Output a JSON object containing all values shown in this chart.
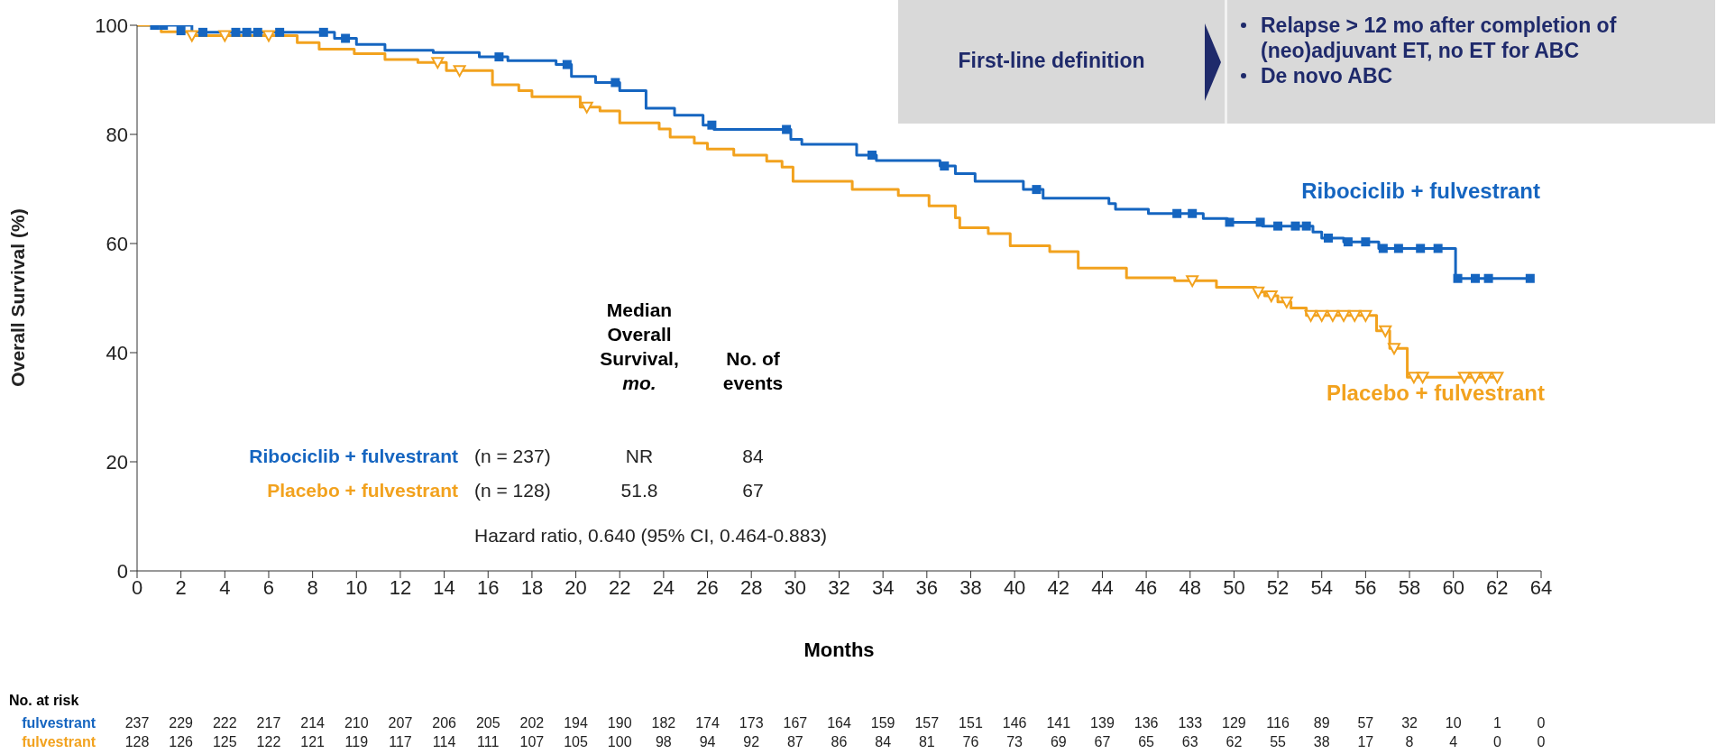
{
  "chart_data": {
    "type": "step",
    "xlabel": "Months",
    "ylabel": "Overall Survival (%)",
    "xlim": [
      0,
      64
    ],
    "ylim": [
      0,
      100
    ],
    "xticks": [
      0,
      2,
      4,
      6,
      8,
      10,
      12,
      14,
      16,
      18,
      20,
      22,
      24,
      26,
      28,
      30,
      32,
      34,
      36,
      38,
      40,
      42,
      44,
      46,
      48,
      50,
      52,
      54,
      56,
      58,
      60,
      62,
      64
    ],
    "yticks": [
      0,
      20,
      40,
      60,
      80,
      100
    ],
    "series": [
      {
        "name": "Ribociclib + fulvestrant",
        "color": "#1565c0",
        "marker": "none",
        "x": [
          0,
          2.5,
          9,
          10,
          11.3,
          13.5,
          15.6,
          16.9,
          19.1,
          19.8,
          20.9,
          22,
          23.2,
          24.5,
          25.8,
          26.3,
          29.8,
          30.3,
          32.8,
          33.7,
          36.6,
          37.3,
          38.2,
          40.4,
          41.3,
          44.3,
          44.6,
          46.1,
          48.6,
          49.7,
          51.3,
          53.6,
          54,
          55,
          56.6,
          60.1,
          63.5
        ],
        "values": [
          100,
          98.7,
          97.6,
          96.5,
          95.4,
          95,
          94.2,
          93.5,
          92.8,
          90.6,
          89.5,
          88,
          84.8,
          83.5,
          81.7,
          80.9,
          79.1,
          78.2,
          76.2,
          75.2,
          74.2,
          72.8,
          71.4,
          69.9,
          68.3,
          67.3,
          66.3,
          65.5,
          64.6,
          63.9,
          63.2,
          62.1,
          61,
          60.3,
          59.1,
          53.6,
          53.6
        ]
      },
      {
        "name": "Placebo + fulvestrant",
        "color": "#f2a21e",
        "marker": "none",
        "x": [
          0,
          1.1,
          2.5,
          7.3,
          8.3,
          9.9,
          11.3,
          12.8,
          14.1,
          16.2,
          17.4,
          18,
          20.2,
          21.1,
          22,
          23.8,
          24.3,
          25.4,
          26,
          27.2,
          28.7,
          29.4,
          29.9,
          32.6,
          34.7,
          36.1,
          37.3,
          37.5,
          38.8,
          39.8,
          41.6,
          42.9,
          45.1,
          47.3,
          49.2,
          51,
          51.4,
          52,
          52.6,
          53.3,
          56.5,
          57.1,
          57.9,
          62.1
        ],
        "values": [
          100,
          98.8,
          98.1,
          96.8,
          95.6,
          94.8,
          93.7,
          93.2,
          91.7,
          89.1,
          88,
          86.9,
          85,
          84.3,
          82.1,
          81,
          79.5,
          78.4,
          77.3,
          76.2,
          75.1,
          74,
          71.4,
          69.9,
          68.8,
          66.9,
          64.7,
          62.9,
          61.8,
          59.6,
          58.5,
          55.5,
          53.7,
          53.2,
          52,
          51.1,
          50.4,
          49.3,
          48.2,
          46.8,
          44,
          40.8,
          35.5,
          35.5
        ]
      },
      {
        "type": "scatter",
        "color": "#1565c0",
        "marker": "square",
        "x": [
          0.8,
          1.2,
          2,
          3,
          4.5,
          5,
          5.5,
          6.5,
          8.5,
          9.5,
          16.5,
          19.6,
          21.8,
          26.2,
          29.6,
          33.5,
          36.8,
          41,
          47.4,
          48.1,
          49.8,
          51.2,
          52,
          52.8,
          53.3,
          54.3,
          55.2,
          56,
          56.8,
          57.5,
          58.5,
          59.3,
          60.2,
          61,
          61.6,
          63.5
        ],
        "values": [
          100,
          100,
          99,
          98.7,
          98.7,
          98.7,
          98.7,
          98.7,
          98.7,
          97.6,
          94.2,
          92.8,
          89.5,
          81.7,
          80.9,
          76.2,
          74.2,
          69.9,
          65.5,
          65.5,
          63.9,
          63.9,
          63.2,
          63.2,
          63.2,
          61,
          60.3,
          60.3,
          59.1,
          59.1,
          59.1,
          59.1,
          53.6,
          53.6,
          53.6,
          53.6
        ]
      },
      {
        "type": "scatter",
        "color": "#f2a21e",
        "marker": "triangle",
        "x": [
          2.5,
          4,
          6,
          13.7,
          14.7,
          20.5,
          48.1,
          51.1,
          51.7,
          52.4,
          53.5,
          54,
          54.5,
          55,
          55.5,
          56,
          56.9,
          57.3,
          58.2,
          58.6,
          60.5,
          61,
          61.5,
          62
        ],
        "values": [
          98.1,
          98.1,
          98.1,
          93.2,
          91.7,
          85,
          53.2,
          51.1,
          50.4,
          49.3,
          46.8,
          46.8,
          46.8,
          46.8,
          46.8,
          46.8,
          44,
          40.8,
          35.5,
          35.5,
          35.5,
          35.5,
          35.5,
          35.5
        ]
      }
    ],
    "annotations": [
      "First-line definition",
      "Relapse > 12 mo after completion of (neo)adjuvant ET, no ET for ABC",
      "De novo ABC",
      "Median Overall Survival,",
      "mo.",
      "No. of events",
      "(n = 237)",
      "NR",
      "84",
      "(n = 128)",
      "51.8",
      "67",
      "Hazard ratio, 0.640 (95% CI, 0.464-0.883)",
      "No. at risk",
      "fulvestrant 237 229 222 217 214 210 207 206 205 202 194 190 182 174 173 167 164 159 157 151 146 141 139 136 133 129 116 89 57 32 10 1 0",
      "fulvestrant 128 126 125 122 121 119 117 114 111 107 105 100 98 94 92 87 86 84 81 76 73 69 67 65 63 62 55 38 17 8 4 0 0"
    ]
  }
}
